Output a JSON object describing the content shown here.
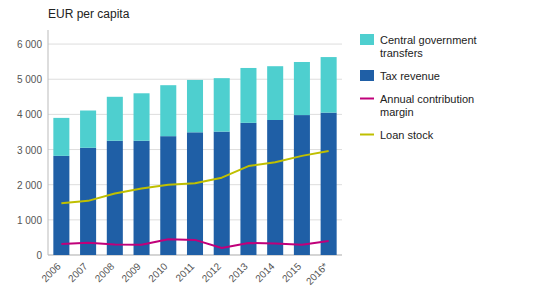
{
  "chart_data": {
    "type": "bar",
    "stacked": true,
    "grid": true,
    "legend": "right",
    "y_label": "EUR per capita",
    "categories": [
      "2006",
      "2007",
      "2008",
      "2009",
      "2010",
      "2011",
      "2012",
      "2013",
      "2014",
      "2015",
      "2016*"
    ],
    "series": [
      {
        "name": "Tax revenue",
        "type": "bar",
        "color": "#1F5FA6",
        "values": [
          2820,
          3050,
          3250,
          3250,
          3380,
          3490,
          3510,
          3760,
          3840,
          3980,
          4050
        ]
      },
      {
        "name": "Central government\ntransfers",
        "type": "bar",
        "color": "#4ECFCF",
        "values": [
          1080,
          1060,
          1250,
          1350,
          1450,
          1490,
          1520,
          1560,
          1530,
          1510,
          1580
        ]
      },
      {
        "name": "Annual contribution\nmargin",
        "type": "line",
        "color": "#C0007A",
        "values": [
          310,
          350,
          300,
          290,
          450,
          430,
          200,
          340,
          330,
          290,
          400
        ]
      },
      {
        "name": "Loan stock",
        "type": "line",
        "color": "#BFBF00",
        "values": [
          1470,
          1540,
          1750,
          1890,
          2000,
          2040,
          2200,
          2530,
          2640,
          2820,
          2960
        ]
      }
    ],
    "ylim": [
      0,
      6400
    ],
    "yticks": [
      0,
      {
        "value": 1000,
        "label": "1 000"
      },
      {
        "value": 2000,
        "label": "2 000"
      },
      {
        "value": 3000,
        "label": "3 000"
      },
      {
        "value": 4000,
        "label": "4 000"
      },
      {
        "value": 5000,
        "label": "5 000"
      },
      {
        "value": 6000,
        "label": "6 000"
      }
    ]
  }
}
